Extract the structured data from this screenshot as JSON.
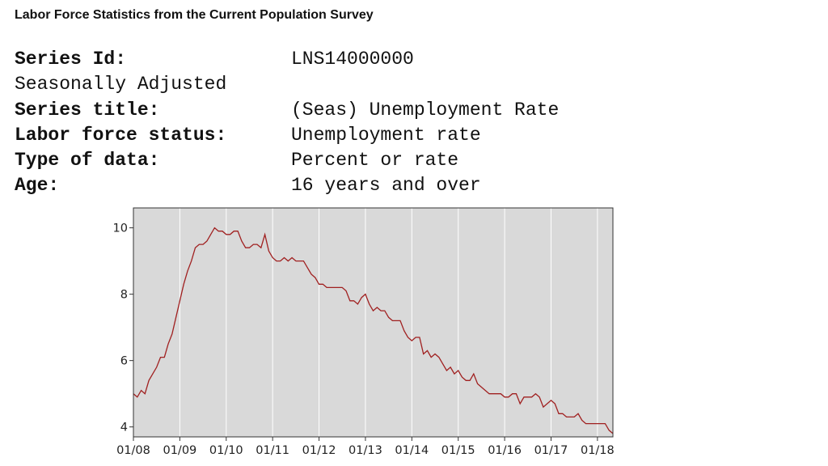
{
  "page": {
    "title": "Labor Force Statistics from the Current Population Survey"
  },
  "series_info": {
    "series_id": {
      "label": "Series Id:",
      "value": "LNS14000000"
    },
    "adjustment": "Seasonally Adjusted",
    "series_title": {
      "label": "Series title:",
      "value": "(Seas) Unemployment Rate"
    },
    "labor_force_status": {
      "label": "Labor force status:",
      "value": "Unemployment rate"
    },
    "type_of_data": {
      "label": "Type of data:",
      "value": "Percent or rate"
    },
    "age": {
      "label": "Age:",
      "value": "16 years and over"
    }
  },
  "chart_data": {
    "type": "line",
    "title": "",
    "xlabel": "",
    "ylabel": "",
    "ylim": [
      3.7,
      10.6
    ],
    "xlim": [
      "2008-01",
      "2018-05"
    ],
    "yticks": [
      4,
      6,
      8,
      10
    ],
    "xticks": [
      "01/08",
      "01/09",
      "01/10",
      "01/11",
      "01/12",
      "01/13",
      "01/14",
      "01/15",
      "01/16",
      "01/17",
      "01/18"
    ],
    "grid": true,
    "line_color": "#a02020",
    "plot_background": "#d9d9d9",
    "series": [
      {
        "x": [
          "2008-01",
          "2008-02",
          "2008-03",
          "2008-04",
          "2008-05",
          "2008-06",
          "2008-07",
          "2008-08",
          "2008-09",
          "2008-10",
          "2008-11",
          "2008-12",
          "2009-01",
          "2009-02",
          "2009-03",
          "2009-04",
          "2009-05",
          "2009-06",
          "2009-07",
          "2009-08",
          "2009-09",
          "2009-10",
          "2009-11",
          "2009-12",
          "2010-01",
          "2010-02",
          "2010-03",
          "2010-04",
          "2010-05",
          "2010-06",
          "2010-07",
          "2010-08",
          "2010-09",
          "2010-10",
          "2010-11",
          "2010-12",
          "2011-01",
          "2011-02",
          "2011-03",
          "2011-04",
          "2011-05",
          "2011-06",
          "2011-07",
          "2011-08",
          "2011-09",
          "2011-10",
          "2011-11",
          "2011-12",
          "2012-01",
          "2012-02",
          "2012-03",
          "2012-04",
          "2012-05",
          "2012-06",
          "2012-07",
          "2012-08",
          "2012-09",
          "2012-10",
          "2012-11",
          "2012-12",
          "2013-01",
          "2013-02",
          "2013-03",
          "2013-04",
          "2013-05",
          "2013-06",
          "2013-07",
          "2013-08",
          "2013-09",
          "2013-10",
          "2013-11",
          "2013-12",
          "2014-01",
          "2014-02",
          "2014-03",
          "2014-04",
          "2014-05",
          "2014-06",
          "2014-07",
          "2014-08",
          "2014-09",
          "2014-10",
          "2014-11",
          "2014-12",
          "2015-01",
          "2015-02",
          "2015-03",
          "2015-04",
          "2015-05",
          "2015-06",
          "2015-07",
          "2015-08",
          "2015-09",
          "2015-10",
          "2015-11",
          "2015-12",
          "2016-01",
          "2016-02",
          "2016-03",
          "2016-04",
          "2016-05",
          "2016-06",
          "2016-07",
          "2016-08",
          "2016-09",
          "2016-10",
          "2016-11",
          "2016-12",
          "2017-01",
          "2017-02",
          "2017-03",
          "2017-04",
          "2017-05",
          "2017-06",
          "2017-07",
          "2017-08",
          "2017-09",
          "2017-10",
          "2017-11",
          "2017-12",
          "2018-01",
          "2018-02",
          "2018-03",
          "2018-04",
          "2018-05"
        ],
        "y": [
          5.0,
          4.9,
          5.1,
          5.0,
          5.4,
          5.6,
          5.8,
          6.1,
          6.1,
          6.5,
          6.8,
          7.3,
          7.8,
          8.3,
          8.7,
          9.0,
          9.4,
          9.5,
          9.5,
          9.6,
          9.8,
          10.0,
          9.9,
          9.9,
          9.8,
          9.8,
          9.9,
          9.9,
          9.6,
          9.4,
          9.4,
          9.5,
          9.5,
          9.4,
          9.8,
          9.3,
          9.1,
          9.0,
          9.0,
          9.1,
          9.0,
          9.1,
          9.0,
          9.0,
          9.0,
          8.8,
          8.6,
          8.5,
          8.3,
          8.3,
          8.2,
          8.2,
          8.2,
          8.2,
          8.2,
          8.1,
          7.8,
          7.8,
          7.7,
          7.9,
          8.0,
          7.7,
          7.5,
          7.6,
          7.5,
          7.5,
          7.3,
          7.2,
          7.2,
          7.2,
          6.9,
          6.7,
          6.6,
          6.7,
          6.7,
          6.2,
          6.3,
          6.1,
          6.2,
          6.1,
          5.9,
          5.7,
          5.8,
          5.6,
          5.7,
          5.5,
          5.4,
          5.4,
          5.6,
          5.3,
          5.2,
          5.1,
          5.0,
          5.0,
          5.0,
          5.0,
          4.9,
          4.9,
          5.0,
          5.0,
          4.7,
          4.9,
          4.9,
          4.9,
          5.0,
          4.9,
          4.6,
          4.7,
          4.8,
          4.7,
          4.4,
          4.4,
          4.3,
          4.3,
          4.3,
          4.4,
          4.2,
          4.1,
          4.1,
          4.1,
          4.1,
          4.1,
          4.1,
          3.9,
          3.8
        ]
      }
    ]
  }
}
